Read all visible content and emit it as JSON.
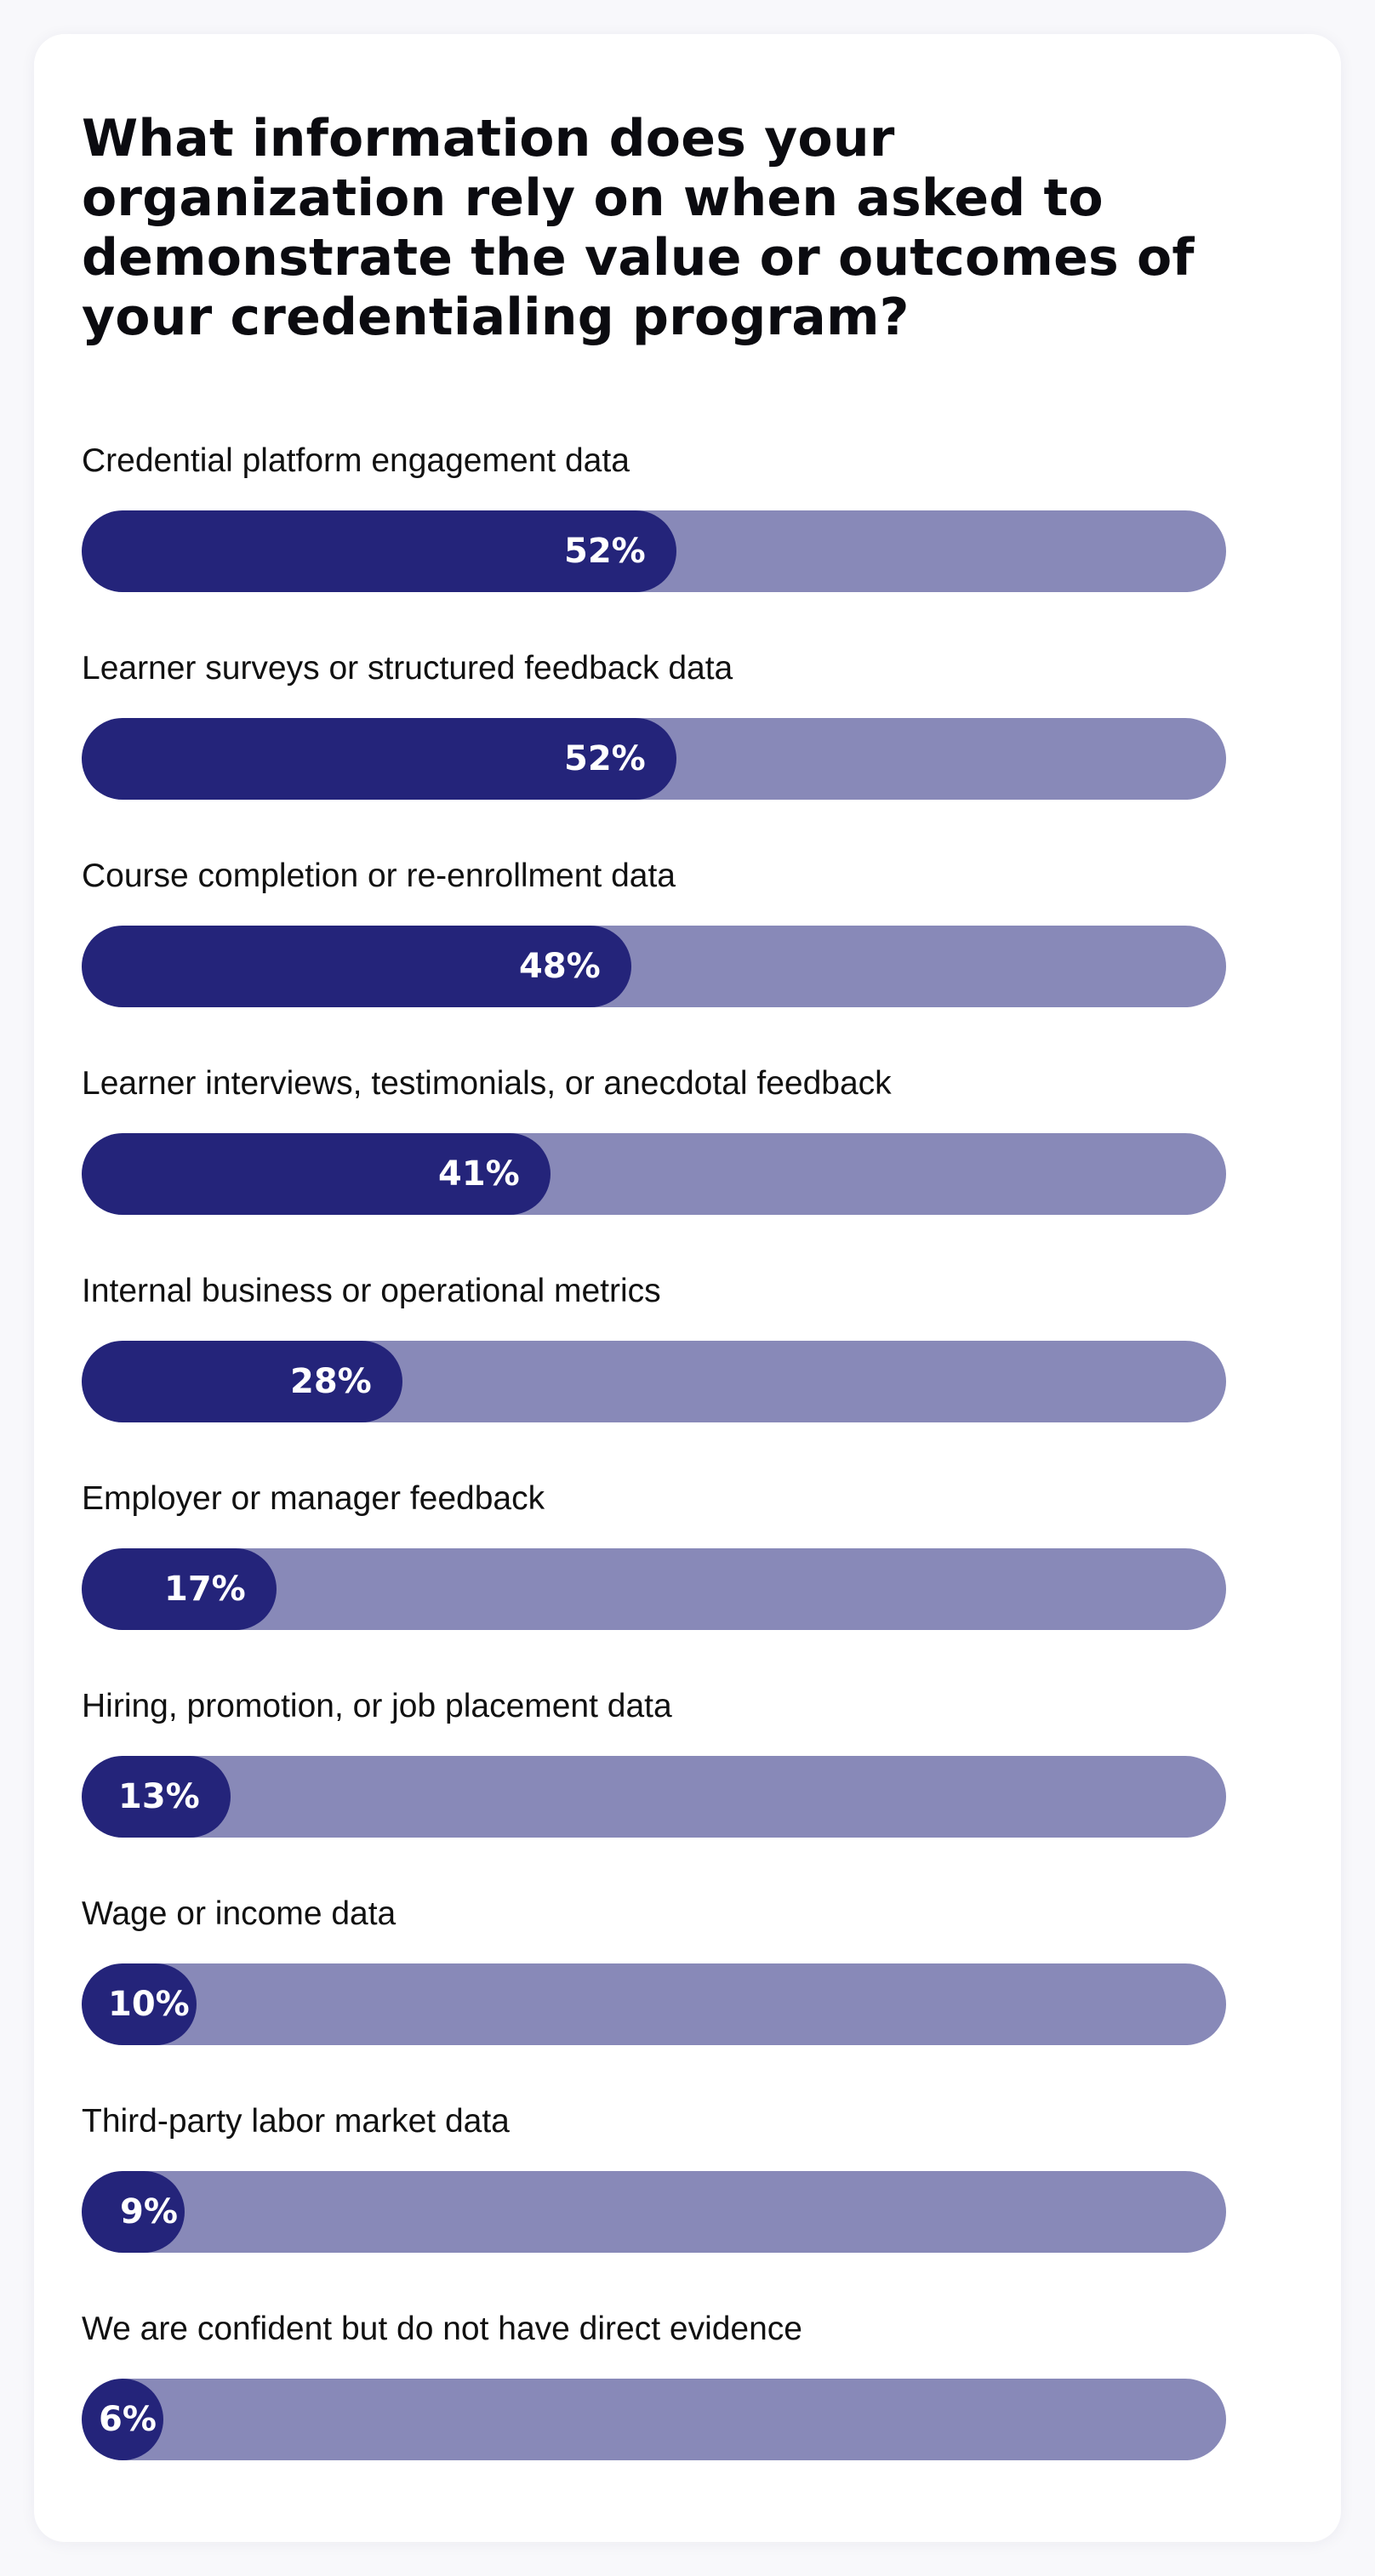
{
  "chart_data": {
    "type": "bar",
    "orientation": "horizontal",
    "title": "What information does your organization rely on when asked to demonstrate the value or outcomes of your credentialing program?",
    "categories": [
      "Credential platform engagement data",
      "Learner surveys or structured feedback data",
      "Course completion or re-enrollment data",
      "Learner interviews, testimonials, or anecdotal feedback",
      "Internal business or operational metrics",
      "Employer or manager feedback",
      "Hiring, promotion, or job placement data",
      "Wage or income data",
      "Third-party labor market data",
      "We are confident but do not have direct evidence"
    ],
    "values": [
      52,
      52,
      48,
      41,
      28,
      17,
      13,
      10,
      9,
      6
    ],
    "value_labels": [
      "52%",
      "52%",
      "48%",
      "41%",
      "28%",
      "17%",
      "13%",
      "10%",
      "9%",
      "6%"
    ],
    "xlim": [
      0,
      100
    ],
    "unit": "%",
    "grid": false,
    "legend": "none",
    "colors": {
      "fill": "#24247a",
      "track": "#8889b8",
      "value_text": "#ffffff",
      "title_text": "#0b0b10",
      "label_text": "#111111"
    }
  }
}
